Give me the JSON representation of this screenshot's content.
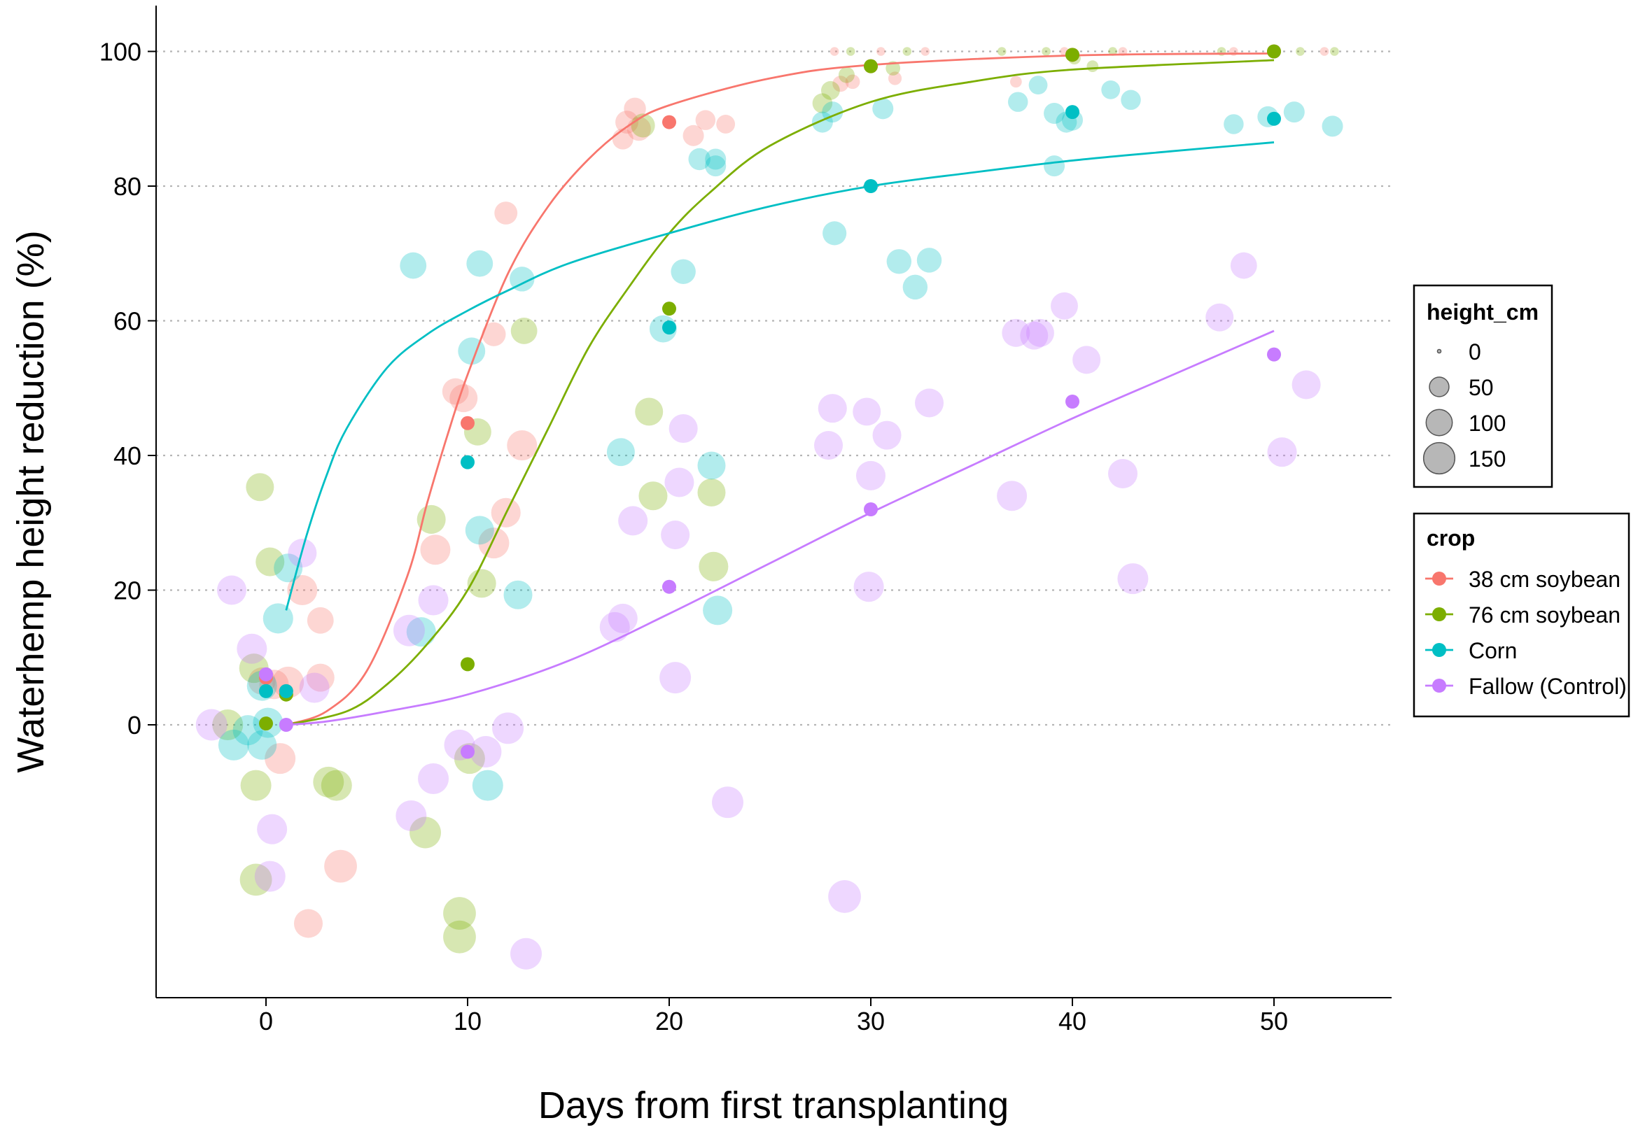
{
  "chart_data": {
    "type": "scatter",
    "title": "",
    "xlabel": "Days from first transplanting",
    "ylabel": "Waterhemp height reduction (%)",
    "xlim": [
      -5.5,
      55.5
    ],
    "ylim": [
      -40,
      106
    ],
    "xticks": [
      0,
      10,
      20,
      30,
      40,
      50
    ],
    "yticks": [
      0,
      20,
      40,
      60,
      80,
      100
    ],
    "grid": "horizontal dotted",
    "legends": {
      "size": {
        "title": "height_cm",
        "entries": [
          {
            "label": "0",
            "value": 0
          },
          {
            "label": "50",
            "value": 50
          },
          {
            "label": "100",
            "value": 100
          },
          {
            "label": "150",
            "value": 150
          }
        ]
      },
      "color": {
        "title": "crop",
        "entries": [
          {
            "label": "38 cm soybean",
            "color": "#F8766D"
          },
          {
            "label": "76 cm soybean",
            "color": "#7CAE00"
          },
          {
            "label": "Corn",
            "color": "#00BFC4"
          },
          {
            "label": "Fallow (Control)",
            "color": "#C77CFF"
          }
        ]
      }
    },
    "series": [
      {
        "name": "38 cm soybean",
        "color": "#F8766D",
        "fit": [
          [
            1,
            0
          ],
          [
            3,
            2
          ],
          [
            5,
            8
          ],
          [
            7,
            22
          ],
          [
            8,
            33
          ],
          [
            9,
            43
          ],
          [
            10,
            52
          ],
          [
            12,
            67
          ],
          [
            14,
            77
          ],
          [
            16,
            84
          ],
          [
            18,
            89
          ],
          [
            20,
            92
          ],
          [
            25,
            96
          ],
          [
            30,
            98
          ],
          [
            40,
            99.4
          ],
          [
            50,
            99.7
          ]
        ],
        "means": [
          [
            0,
            7
          ],
          [
            1,
            5
          ],
          [
            10,
            44.8
          ],
          [
            20,
            89.5
          ],
          [
            30,
            97.8
          ],
          [
            40,
            99.5
          ],
          [
            50,
            100
          ]
        ],
        "points": [
          [
            -0.2,
            6.5,
            75
          ],
          [
            0.4,
            6,
            90
          ],
          [
            1.1,
            6.3,
            105
          ],
          [
            1.8,
            20,
            95
          ],
          [
            2.7,
            7,
            80
          ],
          [
            2.7,
            15.5,
            70
          ],
          [
            0.7,
            -5,
            100
          ],
          [
            2.1,
            -29.5,
            85
          ],
          [
            3.7,
            -21,
            115
          ],
          [
            8.4,
            26,
            95
          ],
          [
            9.4,
            49.5,
            70
          ],
          [
            9.8,
            48.5,
            80
          ],
          [
            11.3,
            27,
            100
          ],
          [
            11.3,
            58,
            55
          ],
          [
            11.9,
            31.5,
            90
          ],
          [
            11.9,
            76,
            50
          ],
          [
            12.7,
            41.5,
            95
          ],
          [
            17.9,
            89.5,
            50
          ],
          [
            18.3,
            91.5,
            45
          ],
          [
            18.5,
            88.5,
            55
          ],
          [
            17.7,
            87,
            40
          ],
          [
            21.2,
            87.5,
            40
          ],
          [
            21.8,
            89.8,
            35
          ],
          [
            22.8,
            89.2,
            30
          ],
          [
            28.5,
            95.2,
            20
          ],
          [
            29.1,
            95.5,
            15
          ],
          [
            31.2,
            96,
            12
          ],
          [
            37.2,
            95.5,
            8
          ],
          [
            28.2,
            100,
            3
          ],
          [
            30.5,
            100,
            3
          ],
          [
            32.7,
            100,
            3
          ],
          [
            39.6,
            100,
            3
          ],
          [
            42.5,
            100,
            3
          ],
          [
            48.0,
            100,
            3
          ],
          [
            52.5,
            100,
            3
          ]
        ]
      },
      {
        "name": "76 cm soybean",
        "color": "#7CAE00",
        "fit": [
          [
            1,
            0
          ],
          [
            4,
            2
          ],
          [
            6,
            6
          ],
          [
            8,
            12
          ],
          [
            10,
            20
          ],
          [
            12,
            32
          ],
          [
            14,
            44
          ],
          [
            16,
            56
          ],
          [
            18,
            65
          ],
          [
            20,
            73
          ],
          [
            22,
            79
          ],
          [
            25,
            86
          ],
          [
            30,
            92.5
          ],
          [
            35,
            95.5
          ],
          [
            40,
            97.3
          ],
          [
            50,
            98.7
          ]
        ],
        "means": [
          [
            0,
            0.2
          ],
          [
            1,
            4.5
          ],
          [
            10,
            9
          ],
          [
            20,
            61.8
          ],
          [
            30,
            97.8
          ],
          [
            40,
            99.5
          ],
          [
            50,
            100
          ]
        ],
        "points": [
          [
            -0.3,
            35.3,
            80
          ],
          [
            -0.6,
            8.4,
            90
          ],
          [
            0.2,
            24.2,
            85
          ],
          [
            -1.9,
            0,
            100
          ],
          [
            -0.5,
            -9,
            100
          ],
          [
            -0.5,
            -23,
            110
          ],
          [
            3.1,
            -8.5,
            100
          ],
          [
            3.5,
            -9,
            100
          ],
          [
            7.9,
            -16,
            105
          ],
          [
            8.2,
            30.5,
            85
          ],
          [
            9.6,
            -28,
            115
          ],
          [
            9.6,
            -31.5,
            115
          ],
          [
            10.1,
            -5,
            100
          ],
          [
            10.5,
            43.5,
            75
          ],
          [
            10.7,
            21,
            85
          ],
          [
            12.8,
            58.5,
            70
          ],
          [
            18.7,
            89,
            55
          ],
          [
            19.0,
            46.5,
            80
          ],
          [
            19.2,
            34,
            85
          ],
          [
            22.1,
            34.5,
            80
          ],
          [
            22.2,
            23.5,
            90
          ],
          [
            27.6,
            92.3,
            35
          ],
          [
            28.0,
            94.2,
            30
          ],
          [
            28.8,
            96.5,
            20
          ],
          [
            31.1,
            97.5,
            15
          ],
          [
            40.1,
            99,
            10
          ],
          [
            41.0,
            97.8,
            8
          ],
          [
            29.0,
            100,
            3
          ],
          [
            31.8,
            100,
            3
          ],
          [
            36.5,
            100,
            3
          ],
          [
            38.7,
            100,
            3
          ],
          [
            42.0,
            100,
            3
          ],
          [
            47.4,
            100,
            3
          ],
          [
            51.3,
            100,
            3
          ],
          [
            53.0,
            100,
            3
          ]
        ]
      },
      {
        "name": "Corn",
        "color": "#00BFC4",
        "fit": [
          [
            1,
            17
          ],
          [
            2,
            28
          ],
          [
            3,
            37
          ],
          [
            4,
            44
          ],
          [
            6,
            53
          ],
          [
            8,
            58
          ],
          [
            10,
            61.5
          ],
          [
            12,
            64.5
          ],
          [
            15,
            68.5
          ],
          [
            20,
            73
          ],
          [
            25,
            77
          ],
          [
            30,
            80
          ],
          [
            35,
            82
          ],
          [
            40,
            83.8
          ],
          [
            45,
            85.2
          ],
          [
            50,
            86.5
          ]
        ],
        "means": [
          [
            0,
            5
          ],
          [
            1,
            5
          ],
          [
            10,
            39
          ],
          [
            20,
            59
          ],
          [
            30,
            80
          ],
          [
            40,
            91
          ],
          [
            50,
            90
          ]
        ],
        "points": [
          [
            -0.2,
            5.8,
            95
          ],
          [
            0.1,
            0.3,
            95
          ],
          [
            -0.9,
            -0.8,
            95
          ],
          [
            -0.2,
            -3,
            90
          ],
          [
            -1.6,
            -3,
            100
          ],
          [
            0.6,
            15.8,
            95
          ],
          [
            1.1,
            23.3,
            85
          ],
          [
            7.3,
            68.2,
            70
          ],
          [
            7.7,
            13.8,
            90
          ],
          [
            10.2,
            55.5,
            75
          ],
          [
            10.6,
            68.5,
            70
          ],
          [
            10.6,
            28.9,
            85
          ],
          [
            11.0,
            -9,
            100
          ],
          [
            12.5,
            19.3,
            85
          ],
          [
            12.7,
            66.2,
            60
          ],
          [
            17.6,
            40.5,
            80
          ],
          [
            19.7,
            58.8,
            75
          ],
          [
            20.7,
            67.3,
            60
          ],
          [
            22.1,
            38.5,
            80
          ],
          [
            22.4,
            17,
            90
          ],
          [
            21.5,
            84,
            45
          ],
          [
            22.3,
            84,
            40
          ],
          [
            22.3,
            83,
            40
          ],
          [
            27.6,
            89.5,
            40
          ],
          [
            28.1,
            91,
            40
          ],
          [
            28.2,
            73,
            55
          ],
          [
            30.6,
            91.5,
            40
          ],
          [
            31.4,
            68.8,
            60
          ],
          [
            32.2,
            65,
            60
          ],
          [
            32.9,
            69,
            60
          ],
          [
            37.3,
            92.5,
            35
          ],
          [
            38.3,
            95,
            30
          ],
          [
            39.1,
            83,
            40
          ],
          [
            39.1,
            90.8,
            40
          ],
          [
            39.7,
            89.5,
            40
          ],
          [
            40.0,
            89.8,
            40
          ],
          [
            41.9,
            94.3,
            30
          ],
          [
            42.9,
            92.8,
            35
          ],
          [
            48.0,
            89.2,
            35
          ],
          [
            49.7,
            90.3,
            40
          ],
          [
            51.0,
            91,
            40
          ],
          [
            52.9,
            88.9,
            40
          ]
        ]
      },
      {
        "name": "Fallow (Control)",
        "color": "#C77CFF",
        "fit": [
          [
            1,
            0
          ],
          [
            3,
            0.5
          ],
          [
            6,
            2
          ],
          [
            10,
            4.5
          ],
          [
            15,
            9.5
          ],
          [
            20,
            16.5
          ],
          [
            25,
            24
          ],
          [
            30,
            31.5
          ],
          [
            35,
            38.5
          ],
          [
            40,
            45.5
          ],
          [
            45,
            52
          ],
          [
            50,
            58.5
          ]
        ],
        "means": [
          [
            0,
            7.5
          ],
          [
            1,
            0
          ],
          [
            10,
            -4
          ],
          [
            20,
            20.5
          ],
          [
            30,
            32
          ],
          [
            40,
            48
          ],
          [
            50,
            55
          ]
        ],
        "points": [
          [
            -1.7,
            20,
            90
          ],
          [
            -2.7,
            0,
            105
          ],
          [
            -0.7,
            11.3,
            95
          ],
          [
            0.2,
            -22.5,
            100
          ],
          [
            0.3,
            -15.5,
            95
          ],
          [
            1.8,
            25.5,
            85
          ],
          [
            2.4,
            5.5,
            95
          ],
          [
            7.1,
            14,
            105
          ],
          [
            7.2,
            -13.5,
            100
          ],
          [
            8.3,
            18.5,
            95
          ],
          [
            8.3,
            -8,
            100
          ],
          [
            9.6,
            -3,
            100
          ],
          [
            10.9,
            -4,
            105
          ],
          [
            12.0,
            -0.5,
            105
          ],
          [
            12.9,
            -34,
            105
          ],
          [
            17.3,
            14.5,
            95
          ],
          [
            17.7,
            15.8,
            90
          ],
          [
            18.2,
            30.3,
            90
          ],
          [
            20.3,
            7,
            105
          ],
          [
            20.3,
            28.2,
            85
          ],
          [
            20.5,
            36,
            90
          ],
          [
            20.7,
            44,
            85
          ],
          [
            22.9,
            -11.5,
            105
          ],
          [
            27.9,
            41.5,
            85
          ],
          [
            28.1,
            47,
            85
          ],
          [
            28.7,
            -25.5,
            115
          ],
          [
            29.8,
            46.5,
            80
          ],
          [
            29.9,
            20.5,
            95
          ],
          [
            30.0,
            37,
            90
          ],
          [
            30.8,
            43,
            85
          ],
          [
            32.9,
            47.8,
            85
          ],
          [
            37.0,
            34,
            95
          ],
          [
            37.2,
            58.2,
            80
          ],
          [
            38.1,
            57.8,
            80
          ],
          [
            38.4,
            58.2,
            80
          ],
          [
            39.6,
            62.2,
            75
          ],
          [
            40.7,
            54.2,
            80
          ],
          [
            42.5,
            37.3,
            90
          ],
          [
            43.0,
            21.7,
            100
          ],
          [
            47.3,
            60.5,
            80
          ],
          [
            48.5,
            68.2,
            70
          ],
          [
            51.6,
            50.5,
            85
          ],
          [
            50.4,
            40.5,
            90
          ]
        ]
      }
    ]
  }
}
